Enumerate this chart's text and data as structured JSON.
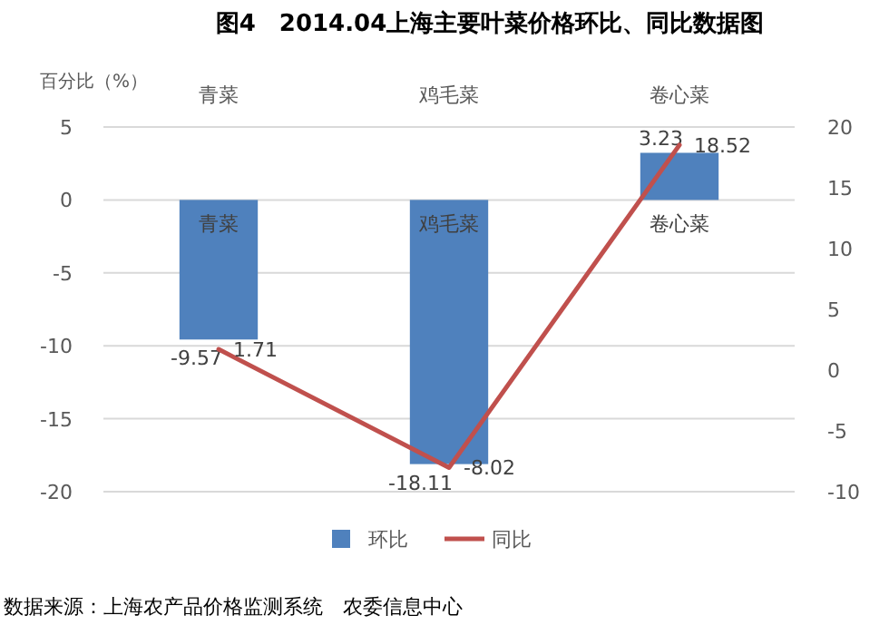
{
  "chart_data": {
    "type": "bar",
    "title": "图4　2014.04上海主要叶菜价格环比、同比数据图",
    "ylabel": "百分比（%）",
    "categories": [
      "青菜",
      "鸡毛菜",
      "卷心菜"
    ],
    "series": [
      {
        "name": "环比",
        "color": "#4f81bd",
        "values": [
          -9.57,
          -18.11,
          3.23
        ]
      },
      {
        "name": "同比",
        "type": "line",
        "axis": "y2",
        "color": "#c0504d",
        "values": [
          1.71,
          -8.02,
          18.52
        ]
      }
    ],
    "ylim": [
      -20,
      5
    ],
    "yticks": [
      -20,
      -15,
      -10,
      -5,
      0,
      5
    ],
    "y2lim": [
      -10,
      20
    ],
    "y2ticks": [
      -10,
      -5,
      0,
      5,
      10,
      15,
      20
    ],
    "grid": "y",
    "legend": "bottom",
    "data_labels": true,
    "marker": "none",
    "annotations": [
      {
        "text": "青菜",
        "x": "青菜",
        "y": 0
      },
      {
        "text": "鸡毛菜",
        "x": "鸡毛菜",
        "y": 0
      },
      {
        "text": "卷心菜",
        "x": "卷心菜",
        "y": 0
      },
      "数据来源：上海农产品价格监测系统　农委信息中心"
    ]
  }
}
